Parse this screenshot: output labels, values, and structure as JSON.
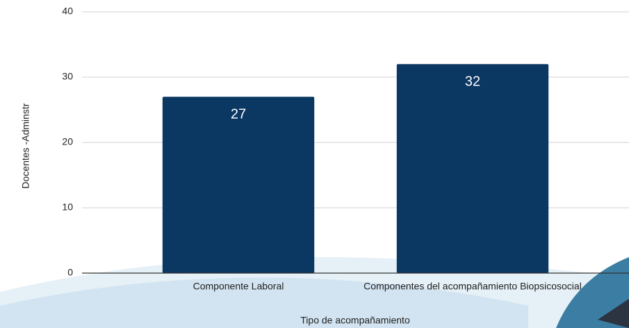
{
  "chart_data": {
    "type": "bar",
    "y_label": "Docentes -Adminstr",
    "x_label": "Tipo de acompañamiento",
    "categories": [
      "Componente Laboral",
      "Componentes del acompañamiento Biopsicosocial"
    ],
    "values": [
      27,
      32
    ],
    "color": "#0b3763",
    "ylim": [
      0,
      40
    ],
    "yticks": [
      0,
      10,
      20,
      30,
      40
    ],
    "grid": true
  }
}
